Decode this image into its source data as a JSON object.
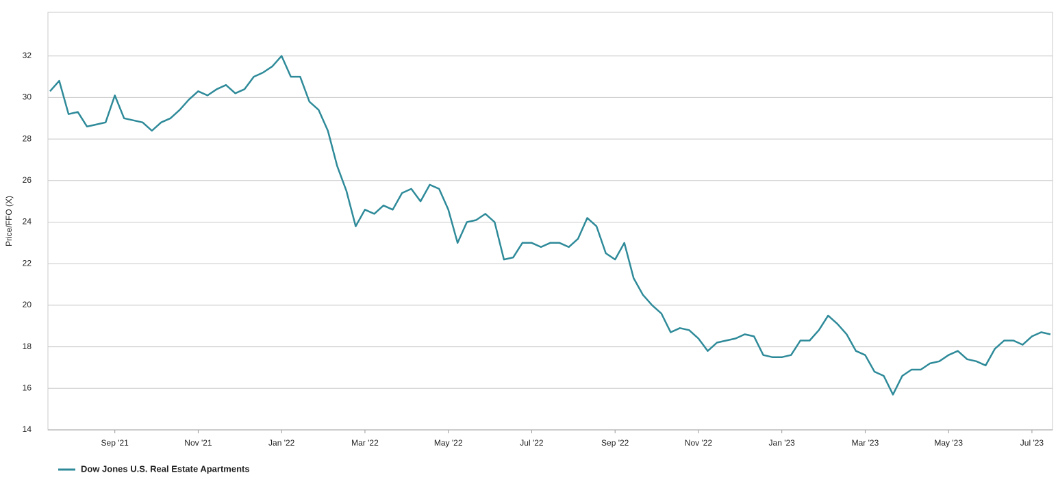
{
  "chart_data": {
    "type": "line",
    "y_label": "Price/FFO (X)",
    "categories": [
      null,
      null,
      null,
      null,
      null,
      null,
      null,
      "Sep '21",
      null,
      null,
      null,
      null,
      null,
      null,
      null,
      null,
      "Nov '21",
      null,
      null,
      null,
      null,
      null,
      null,
      null,
      null,
      "Jan '22",
      null,
      null,
      null,
      null,
      null,
      null,
      null,
      null,
      "Mar '22",
      null,
      null,
      null,
      null,
      null,
      null,
      null,
      null,
      "May '22",
      null,
      null,
      null,
      null,
      null,
      null,
      null,
      null,
      "Jul '22",
      null,
      null,
      null,
      null,
      null,
      null,
      null,
      null,
      "Sep '22",
      null,
      null,
      null,
      null,
      null,
      null,
      null,
      null,
      "Nov '22",
      null,
      null,
      null,
      null,
      null,
      null,
      null,
      null,
      "Jan '23",
      null,
      null,
      null,
      null,
      null,
      null,
      null,
      null,
      "Mar '23",
      null,
      null,
      null,
      null,
      null,
      null,
      null,
      null,
      "May '23",
      null,
      null,
      null,
      null,
      null,
      null,
      null,
      null,
      "Jul '23",
      null,
      null
    ],
    "series": [
      {
        "name": "Dow Jones U.S. Real Estate Apartments",
        "color": "#2e8a99",
        "values": [
          30.3,
          30.8,
          29.2,
          29.3,
          28.6,
          28.7,
          28.8,
          30.1,
          29.0,
          28.9,
          28.8,
          28.4,
          28.8,
          29.0,
          29.4,
          29.9,
          30.3,
          30.1,
          30.4,
          30.6,
          30.2,
          30.4,
          31.0,
          31.2,
          31.5,
          32.0,
          31.0,
          31.0,
          29.8,
          29.4,
          28.4,
          26.7,
          25.5,
          23.8,
          24.6,
          24.4,
          24.8,
          24.6,
          25.4,
          25.6,
          25.0,
          25.8,
          25.6,
          24.6,
          23.0,
          24.0,
          24.1,
          24.4,
          24.0,
          22.2,
          22.3,
          23.0,
          23.0,
          22.8,
          23.0,
          23.0,
          22.8,
          23.2,
          24.2,
          23.8,
          22.5,
          22.2,
          23.0,
          21.3,
          20.5,
          20.0,
          19.6,
          18.7,
          18.9,
          18.8,
          18.4,
          17.8,
          18.2,
          18.3,
          18.4,
          18.6,
          18.5,
          17.6,
          17.5,
          17.5,
          17.6,
          18.3,
          18.3,
          18.8,
          19.5,
          19.1,
          18.6,
          17.8,
          17.6,
          16.8,
          16.6,
          15.7,
          16.6,
          16.9,
          16.9,
          17.2,
          17.3,
          17.6,
          17.8,
          17.4,
          17.3,
          17.1,
          17.9,
          18.3,
          18.3,
          18.1,
          18.5,
          18.7,
          18.6
        ]
      }
    ],
    "ylim": [
      14,
      34
    ],
    "yticks": [
      14,
      16,
      18,
      20,
      22,
      24,
      26,
      28,
      30,
      32
    ],
    "grid": true,
    "legend": "bottom-left"
  }
}
